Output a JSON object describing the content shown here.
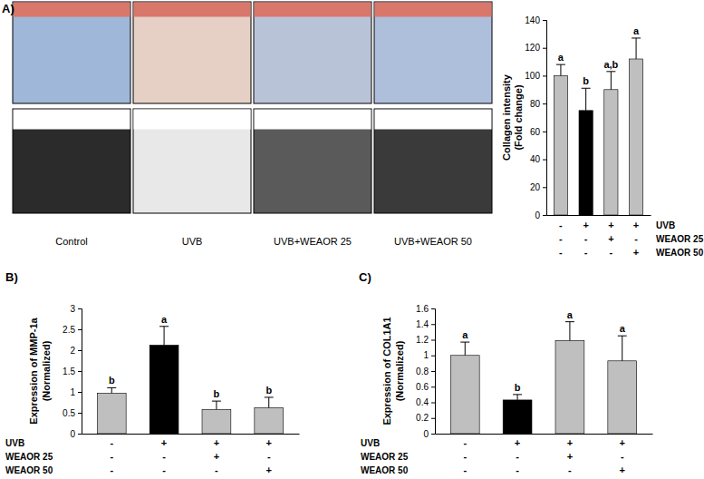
{
  "images": {
    "captions": [
      "Control",
      "UVB",
      "UVB+WEAOR 25",
      "UVB+WEAOR 50"
    ]
  },
  "chart_data": [
    {
      "type": "bar",
      "title": "A)",
      "y_label": [
        "Collagen intensity",
        "(Fold change)"
      ],
      "categories": [
        null,
        null,
        null,
        null
      ],
      "values": [
        100,
        75,
        90,
        112
      ],
      "errors": [
        8,
        16,
        13,
        15
      ],
      "letters": [
        "a",
        "b",
        "a,b",
        "a"
      ],
      "colors": [
        "#bfbfbf",
        "#000000",
        "#bfbfbf",
        "#bfbfbf"
      ],
      "treatments": [
        {
          "name": "UVB",
          "values": [
            "-",
            "+",
            "+",
            "+"
          ]
        },
        {
          "name": "WEAOR 25",
          "values": [
            "-",
            "-",
            "+",
            "-"
          ]
        },
        {
          "name": "WEAOR 50",
          "values": [
            "-",
            "-",
            "-",
            "+"
          ]
        }
      ],
      "ylim": [
        0,
        140
      ],
      "yticks": [
        0,
        20,
        40,
        60,
        80,
        100,
        120,
        140
      ]
    },
    {
      "type": "bar",
      "title": "B)",
      "y_label": [
        "Expression of MMP-1a",
        "(Normalized)"
      ],
      "categories": [
        null,
        null,
        null,
        null
      ],
      "values": [
        0.97,
        2.12,
        0.58,
        0.62
      ],
      "errors": [
        0.13,
        0.45,
        0.2,
        0.25
      ],
      "letters": [
        "b",
        "a",
        "b",
        "b"
      ],
      "colors": [
        "#bfbfbf",
        "#000000",
        "#bfbfbf",
        "#bfbfbf"
      ],
      "treatments": [
        {
          "name": "UVB",
          "values": [
            "-",
            "+",
            "+",
            "+"
          ]
        },
        {
          "name": "WEAOR 25",
          "values": [
            "-",
            "-",
            "+",
            "-"
          ]
        },
        {
          "name": "WEAOR 50",
          "values": [
            "-",
            "-",
            "-",
            "+"
          ]
        }
      ],
      "ylim": [
        0,
        3
      ],
      "yticks": [
        0,
        0.5,
        1,
        1.5,
        2,
        2.5,
        3
      ]
    },
    {
      "type": "bar",
      "title": "C)",
      "y_label": [
        "Expression of COL1A1",
        "(Normalized)"
      ],
      "categories": [
        null,
        null,
        null,
        null
      ],
      "values": [
        1.0,
        0.43,
        1.19,
        0.93
      ],
      "errors": [
        0.17,
        0.07,
        0.24,
        0.32
      ],
      "letters": [
        "a",
        "b",
        "a",
        "a"
      ],
      "colors": [
        "#bfbfbf",
        "#000000",
        "#bfbfbf",
        "#bfbfbf"
      ],
      "treatments": [
        {
          "name": "UVB",
          "values": [
            "-",
            "+",
            "+",
            "+"
          ]
        },
        {
          "name": "WEAOR 25",
          "values": [
            "-",
            "-",
            "+",
            "-"
          ]
        },
        {
          "name": "WEAOR 50",
          "values": [
            "-",
            "-",
            "-",
            "+"
          ]
        }
      ],
      "ylim": [
        0,
        1.6
      ],
      "yticks": [
        0,
        0.2,
        0.4,
        0.6,
        0.8,
        1,
        1.2,
        1.4,
        1.6
      ]
    }
  ]
}
